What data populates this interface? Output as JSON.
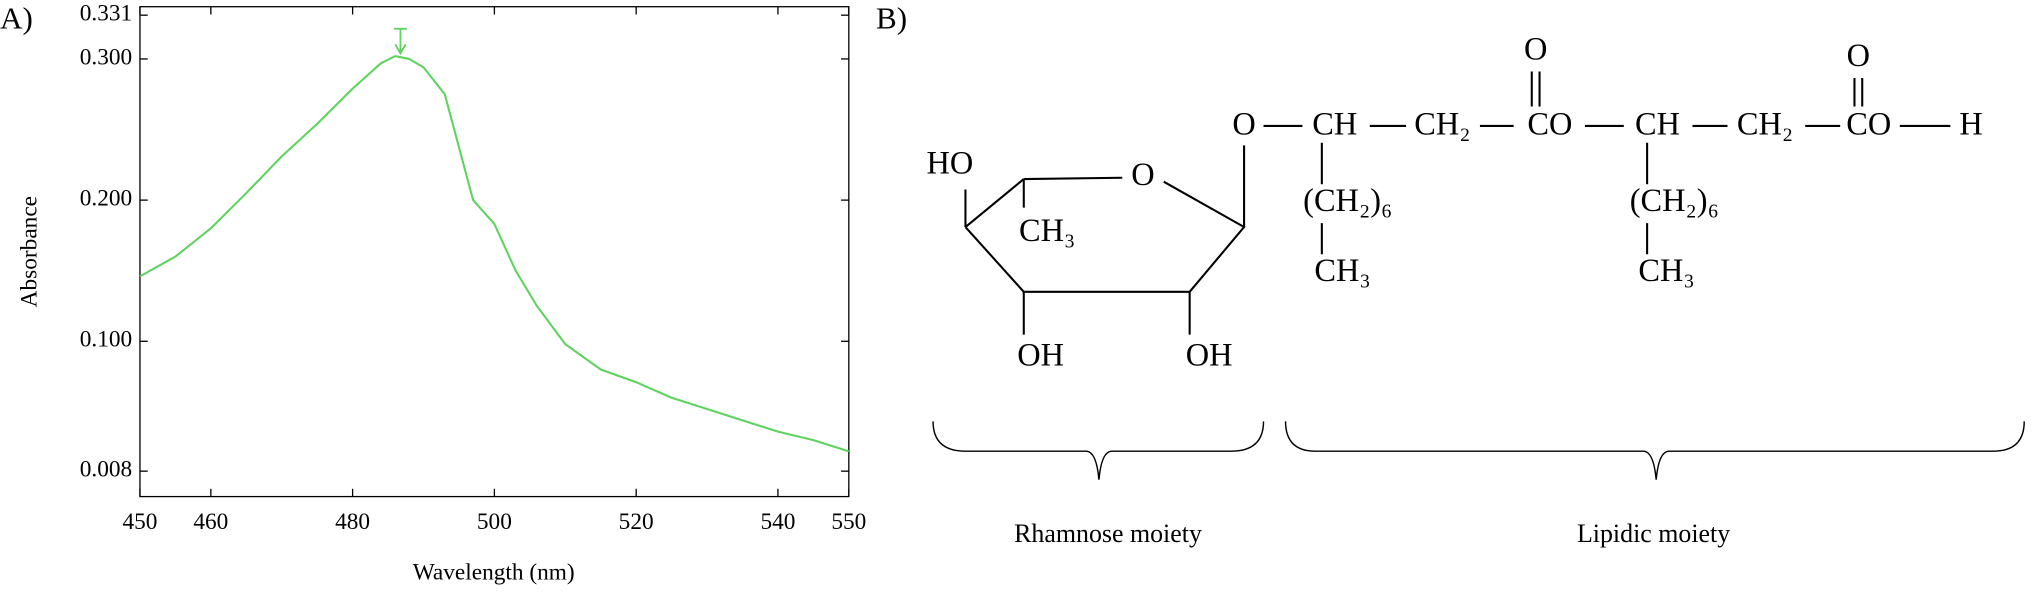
{
  "chart_data": {
    "type": "line",
    "panel_label": "A)",
    "x_label": "Wavelength (nm)",
    "y_label": "Absorbance",
    "x": [
      450,
      455,
      460,
      465,
      470,
      475,
      480,
      484,
      486,
      488,
      490,
      493,
      497,
      500,
      503,
      506,
      510,
      515,
      520,
      525,
      530,
      535,
      540,
      545,
      550
    ],
    "values": [
      0.146,
      0.16,
      0.18,
      0.205,
      0.231,
      0.254,
      0.279,
      0.297,
      0.302,
      0.3,
      0.294,
      0.275,
      0.2,
      0.183,
      0.15,
      0.125,
      0.098,
      0.08,
      0.071,
      0.06,
      0.052,
      0.044,
      0.036,
      0.03,
      0.022
    ],
    "color": "#5fd35f",
    "xlim": [
      450,
      550
    ],
    "ylim": [
      -0.01,
      0.337
    ],
    "xticks": [
      450,
      460,
      480,
      500,
      520,
      540,
      550
    ],
    "yticks": [
      0.008,
      {
        "value": 0.1,
        "label": "0.100"
      },
      {
        "value": 0.2,
        "label": "0.200"
      },
      {
        "value": 0.3,
        "label": "0.300"
      },
      0.331
    ],
    "grid": false
  },
  "structure": {
    "panel_label": "B)",
    "atoms": [
      "O",
      "O",
      "O",
      "CH",
      "CH₂",
      "CO",
      "CH",
      "CH₂",
      "CO",
      "H",
      "HO",
      "O",
      "CH₃",
      "OH",
      "OH",
      "(CH₂)₆",
      "CH₃",
      "(CH₂)₆",
      "CH₃"
    ],
    "moieties": [
      "Rhamnose moiety",
      "Lipidic moiety"
    ]
  }
}
